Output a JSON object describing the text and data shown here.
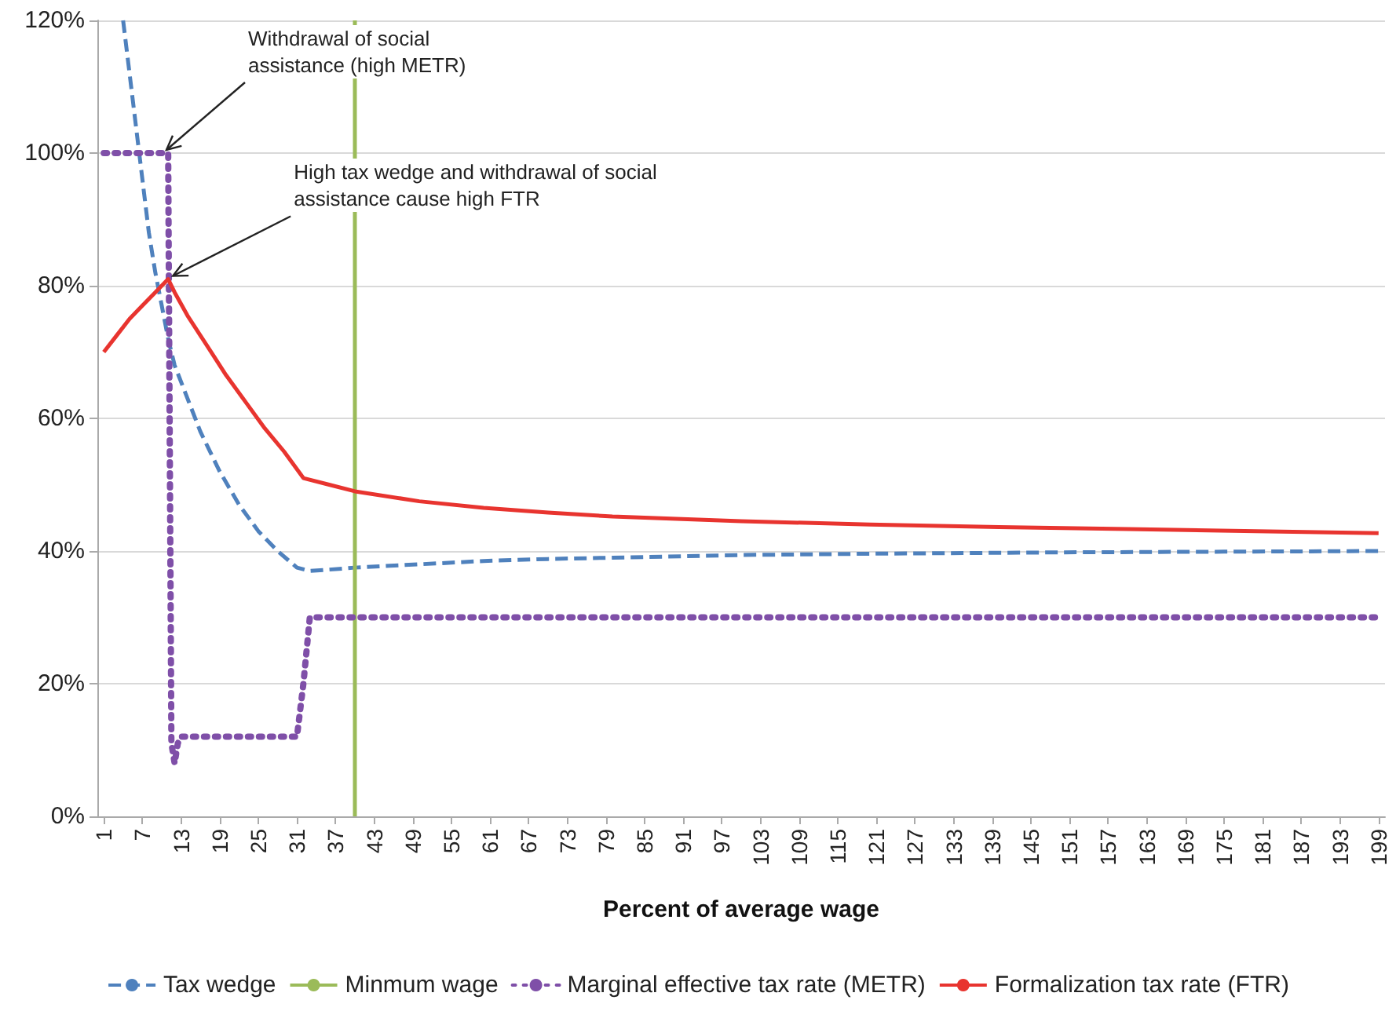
{
  "chart_data": {
    "type": "line",
    "xlabel": "Percent of average wage",
    "xlim": [
      0,
      200
    ],
    "xticks": [
      1,
      7,
      13,
      19,
      25,
      31,
      37,
      43,
      49,
      55,
      61,
      67,
      73,
      79,
      85,
      91,
      97,
      103,
      109,
      115,
      121,
      127,
      133,
      139,
      145,
      151,
      157,
      163,
      169,
      175,
      181,
      187,
      193,
      199
    ],
    "ylim": [
      0,
      120
    ],
    "yticks": [
      {
        "value": 0,
        "label": "0%"
      },
      {
        "value": 20,
        "label": "20%"
      },
      {
        "value": 40,
        "label": "40%"
      },
      {
        "value": 60,
        "label": "60%"
      },
      {
        "value": 80,
        "label": "80%"
      },
      {
        "value": 100,
        "label": "100%"
      },
      {
        "value": 120,
        "label": "120%"
      }
    ],
    "grid": "y",
    "legend": "bottom",
    "marker": "none",
    "series": [
      {
        "name": "Tax wedge",
        "color": "#4f81bd",
        "line_style": "dashed",
        "x": [
          4,
          5,
          6,
          7,
          8,
          9,
          10,
          11,
          12,
          14,
          16,
          19,
          22,
          25,
          28,
          31,
          33,
          36,
          40,
          50,
          60,
          70,
          80,
          100,
          120,
          150,
          175,
          199
        ],
        "values": [
          120,
          112,
          104,
          96,
          88,
          82,
          77,
          72,
          68,
          63,
          58,
          52,
          47,
          43,
          40,
          37.5,
          37,
          37.2,
          37.5,
          38,
          38.5,
          38.8,
          39,
          39.4,
          39.6,
          39.8,
          39.9,
          40
        ]
      },
      {
        "name": "Minmum wage",
        "color": "#9bbb59",
        "line_style": "solid",
        "x": [
          40,
          40
        ],
        "values": [
          0,
          120
        ]
      },
      {
        "name": "Marginal effective tax rate (METR)",
        "color": "#7f4fa8",
        "line_style": "dotted",
        "x": [
          1,
          11,
          11.5,
          12,
          12.5,
          13,
          31,
          32,
          33,
          199
        ],
        "values": [
          100,
          100,
          11,
          8,
          11,
          12,
          12,
          20,
          30,
          30
        ]
      },
      {
        "name": "Formalization tax rate (FTR)",
        "color": "#e8342f",
        "line_style": "solid",
        "x": [
          1,
          3,
          5,
          7,
          9,
          11,
          12,
          14,
          16,
          18,
          20,
          23,
          26,
          29,
          32,
          36,
          40,
          50,
          60,
          70,
          80,
          100,
          120,
          140,
          160,
          180,
          199
        ],
        "values": [
          70,
          72.5,
          75,
          77,
          79,
          81,
          79,
          75.5,
          72.5,
          69.5,
          66.5,
          62.5,
          58.5,
          55,
          51,
          50,
          49,
          47.5,
          46.5,
          45.8,
          45.2,
          44.5,
          44,
          43.6,
          43.3,
          43,
          42.7
        ]
      }
    ],
    "annotations": [
      {
        "text": "Withdrawal of social assistance (high METR)",
        "x": 10,
        "y": 100
      },
      {
        "text": "High tax wedge and withdrawal of social assistance cause high FTR",
        "x": 11,
        "y": 81
      }
    ]
  }
}
